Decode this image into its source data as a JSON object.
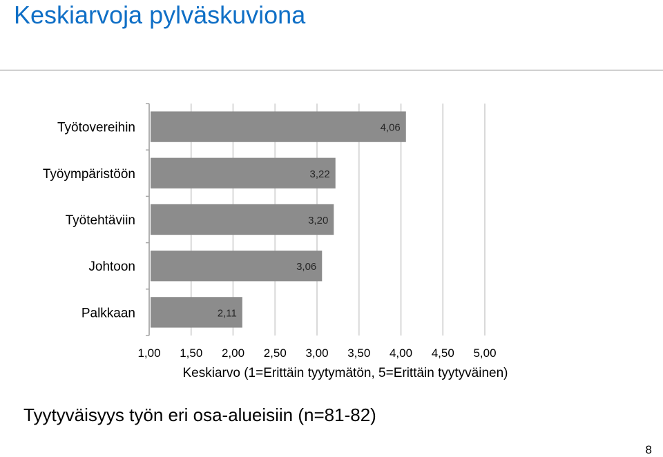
{
  "slide": {
    "title": "Keskiarvoja pylväskuviona",
    "footer": "Tyytyväisyys työn eri osa-alueisiin (n=81-82)",
    "page_number": "8"
  },
  "chart_data": {
    "type": "bar",
    "orientation": "horizontal",
    "title": "",
    "xlabel": "Keskiarvo (1=Erittäin tyytymätön, 5=Erittäin tyytyväinen)",
    "ylabel": "",
    "categories": [
      "Työtovereihin",
      "Työympäristöön",
      "Työtehtäviin",
      "Johtoon",
      "Palkkaan"
    ],
    "values": [
      4.06,
      3.22,
      3.2,
      3.06,
      2.11
    ],
    "value_labels": [
      "4,06",
      "3,22",
      "3,20",
      "3,06",
      "2,11"
    ],
    "xlim": [
      1,
      5
    ],
    "xticks": [
      1.0,
      1.5,
      2.0,
      2.5,
      3.0,
      3.5,
      4.0,
      4.5,
      5.0
    ],
    "xtick_labels": [
      "1,00",
      "1,50",
      "2,00",
      "2,50",
      "3,00",
      "3,50",
      "4,00",
      "4,50",
      "5,00"
    ],
    "grid": "vertical",
    "legend": "none",
    "bar_color": "#8c8c8c",
    "grid_color": "#d9d9d9"
  },
  "colors": {
    "title": "#0f6fc6",
    "bar": "#8c8c8c",
    "grid": "#d9d9d9",
    "axis": "#a6a6a6"
  }
}
